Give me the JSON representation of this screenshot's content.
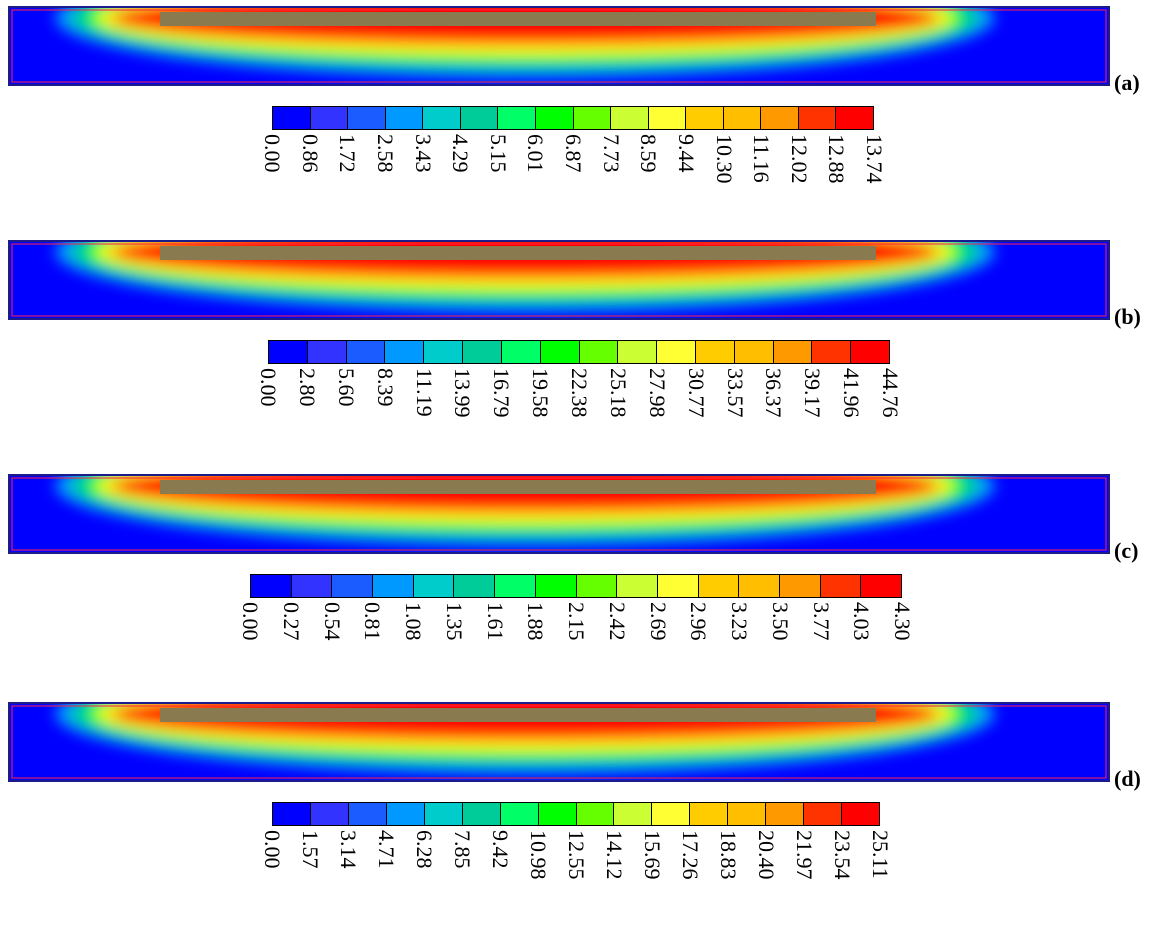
{
  "colorbar_colors": [
    "#0000ff",
    "#3333ff",
    "#1a5cff",
    "#0099ff",
    "#00cccc",
    "#00cc99",
    "#00ff66",
    "#00ff00",
    "#66ff00",
    "#ccff33",
    "#ffff33",
    "#ffcc00",
    "#ffbf00",
    "#ff9900",
    "#ff3300",
    "#ff0000"
  ],
  "panels": [
    {
      "label": "(a)",
      "ticks": [
        "0.00",
        "0.86",
        "1.72",
        "2.58",
        "3.43",
        "4.29",
        "5.15",
        "6.01",
        "6.87",
        "7.73",
        "8.59",
        "9.44",
        "10.30",
        "11.16",
        "12.02",
        "12.88",
        "13.74"
      ]
    },
    {
      "label": "(b)",
      "ticks": [
        "0.00",
        "2.80",
        "5.60",
        "8.39",
        "11.19",
        "13.99",
        "16.79",
        "19.58",
        "22.38",
        "25.18",
        "27.98",
        "30.77",
        "33.57",
        "36.37",
        "39.17",
        "41.96",
        "44.76"
      ]
    },
    {
      "label": "(c)",
      "ticks": [
        "0.00",
        "0.27",
        "0.54",
        "0.81",
        "1.08",
        "1.35",
        "1.61",
        "1.88",
        "2.15",
        "2.42",
        "2.69",
        "2.96",
        "3.23",
        "3.50",
        "3.77",
        "4.03",
        "4.30"
      ]
    },
    {
      "label": "(d)",
      "ticks": [
        "0.00",
        "1.57",
        "3.14",
        "4.71",
        "6.28",
        "7.85",
        "9.42",
        "10.98",
        "12.55",
        "14.12",
        "15.69",
        "17.26",
        "18.83",
        "20.40",
        "21.97",
        "23.54",
        "25.11"
      ]
    }
  ]
}
